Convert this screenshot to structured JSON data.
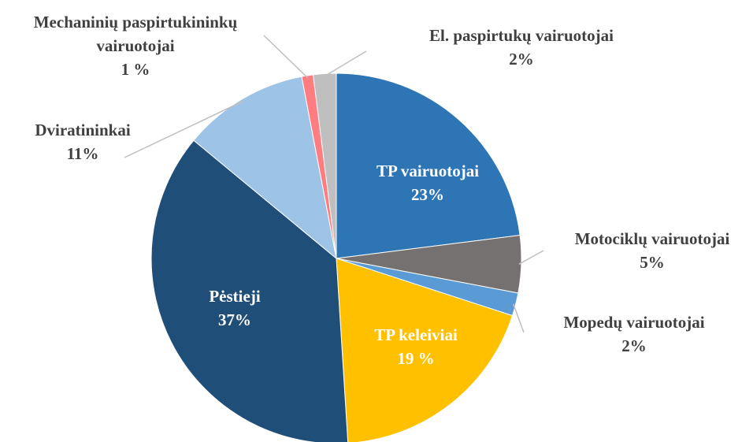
{
  "chart_data": {
    "type": "pie",
    "categories": [
      "TP vairuotojai",
      "Motociklų vairuotojai",
      "Mopedų vairuotojai",
      "TP keleiviai",
      "Pėstieji",
      "Dviratininkai",
      "Mechaninių paspirtukininkų vairuotojai",
      "El. paspirtukų vairuotojai"
    ],
    "values": [
      23,
      5,
      2,
      19,
      37,
      11,
      1,
      2
    ],
    "value_labels": [
      "23%",
      "5%",
      "2%",
      "19 %",
      "37%",
      "11%",
      "1 %",
      "2%"
    ],
    "colors": [
      "#2e75b6",
      "#767171",
      "#5b9bd5",
      "#ffc000",
      "#1f4e79",
      "#9dc3e6",
      "#ff7c80",
      "#bfbfbf"
    ]
  }
}
